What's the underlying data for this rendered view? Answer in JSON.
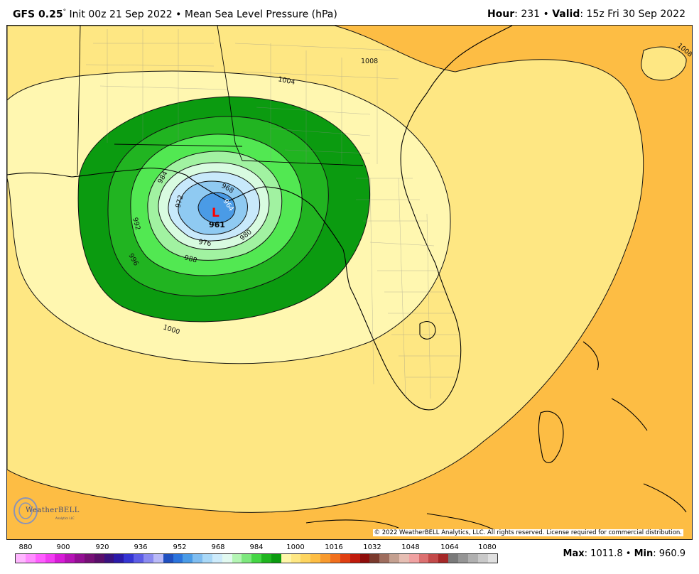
{
  "header": {
    "model": "GFS 0.25",
    "degree": "°",
    "init": "Init 00z 21 Sep 2022",
    "bullet": "•",
    "field": "Mean Sea Level Pressure (hPa)",
    "hour_label": "Hour",
    "hour_value": ": 231",
    "valid_label": "Valid",
    "valid_value": ": 15z Fri 30 Sep 2022"
  },
  "map": {
    "low_marker": "L",
    "low_value": "961",
    "contour_labels": [
      "1008",
      "1008",
      "1004",
      "1000",
      "996",
      "992",
      "988",
      "984",
      "980",
      "976",
      "972",
      "968",
      "964"
    ],
    "copyright": "© 2022 WeatherBELL Analytics, LLC. All rights reserved. License required for commercial distribution.",
    "logo_text": "WeatherBELL",
    "logo_sub": "Analytics LLC",
    "colors": {
      "ocean_orange": "#fdbd44",
      "band_1008": "#fee783",
      "band_1004": "#fff7b0",
      "green_dark": "#0b9b10",
      "green_mid": "#21b421",
      "green_bright": "#52e852",
      "green_light": "#a1f2a1",
      "mint": "#d8fbe0",
      "blue_pale": "#c8e9fb",
      "blue_light": "#8fcaf2",
      "blue": "#4a9be6",
      "low_red": "#ff0000"
    }
  },
  "scale": {
    "tick_labels": [
      "880",
      "900",
      "920",
      "936",
      "952",
      "968",
      "984",
      "1000",
      "1016",
      "1032",
      "1048",
      "1064",
      "1080"
    ],
    "colors": [
      "#ffb6ff",
      "#ff8cff",
      "#ff5dff",
      "#f23cf2",
      "#d71bd7",
      "#b513b5",
      "#930f93",
      "#761076",
      "#5a0f6a",
      "#3a127f",
      "#2b1aa8",
      "#3535d3",
      "#5d5de6",
      "#8b8bf0",
      "#b9b9f7",
      "#1f4fbf",
      "#2b74dc",
      "#4a9be6",
      "#7fbdf0",
      "#a9d8f7",
      "#cdebfb",
      "#e2f9f0",
      "#b4f5b4",
      "#7ee87e",
      "#45d645",
      "#1fb51f",
      "#0b9b10",
      "#fff6a8",
      "#fee783",
      "#fdd45f",
      "#fdbd44",
      "#f89a2e",
      "#f16f1d",
      "#e03f12",
      "#c01a0c",
      "#8e0d0b",
      "#7a3a2d",
      "#9e6d5e",
      "#c4a090",
      "#e6beb3",
      "#f0a2a2",
      "#dc7070",
      "#c34a4a",
      "#a52828",
      "#7a7a7a",
      "#959595",
      "#b0b0b0",
      "#c9c9c9",
      "#e0e0e0"
    ]
  },
  "stats": {
    "max_label": "Max",
    "max_value": ": 1011.8",
    "bullet": "•",
    "min_label": "Min",
    "min_value": ": 960.9"
  }
}
